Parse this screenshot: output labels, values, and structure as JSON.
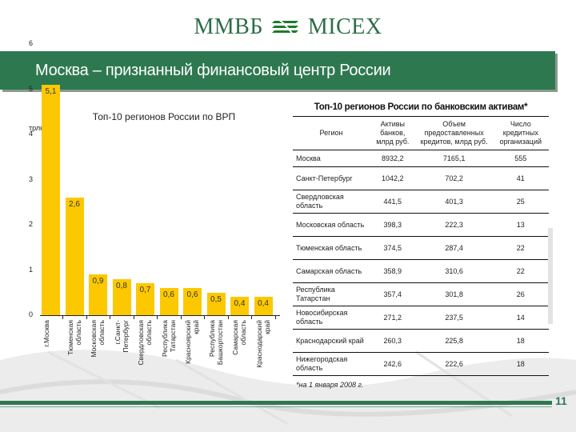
{
  "header": {
    "logo_left": "ММВБ",
    "logo_right": "MICEX",
    "logo_icon": "micex-stripes-icon",
    "title": "Москва – признанный финансовый центр России"
  },
  "colors": {
    "brand_green": "#2e7850",
    "bar_yellow": "#fcc800"
  },
  "chart_data": {
    "type": "bar",
    "title": "Топ-10 регионов России по ВРП",
    "ylabel": "трлн руб.",
    "xlabel": "",
    "ylim": [
      0,
      6
    ],
    "yticks": [
      "0",
      "1",
      "2",
      "3",
      "4",
      "5",
      "6"
    ],
    "grid": false,
    "categories": [
      "г.Москва",
      "Тюменская область",
      "Московская область",
      "г.Санкт-Петербург",
      "Свердловская область",
      "Республика Татарстан",
      "Красноярский край",
      "Республика Башкортостан",
      "Самарская область",
      "Краснодарский край"
    ],
    "values": [
      5.1,
      2.6,
      0.9,
      0.8,
      0.7,
      0.6,
      0.6,
      0.5,
      0.4,
      0.4
    ],
    "value_labels": [
      "5,1",
      "2,6",
      "0,9",
      "0,8",
      "0,7",
      "0,6",
      "0,6",
      "0,5",
      "0,4",
      "0,4"
    ]
  },
  "table": {
    "title": "Топ-10 регионов России по банковским активам*",
    "columns": [
      "Регион",
      "Активы банков, млрд руб.",
      "Объем предоставленных кредитов, млрд руб.",
      "Число кредитных организаций"
    ],
    "rows": [
      [
        "Москва",
        "8932,2",
        "7165,1",
        "555"
      ],
      [
        "Санкт-Петербург",
        "1042,2",
        "702,2",
        "41"
      ],
      [
        "Свердловская область",
        "441,5",
        "401,3",
        "25"
      ],
      [
        "Московская область",
        "398,3",
        "222,3",
        "13"
      ],
      [
        "Тюменская область",
        "374,5",
        "287,4",
        "22"
      ],
      [
        "Самарская область",
        "358,9",
        "310,6",
        "22"
      ],
      [
        "Республика Татарстан",
        "357,4",
        "301,8",
        "26"
      ],
      [
        "Новосибирская область",
        "271,2",
        "237,5",
        "14"
      ],
      [
        "Краснодарский край",
        "260,3",
        "225,8",
        "18"
      ],
      [
        "Нижегородская область",
        "242,6",
        "222,6",
        "18"
      ]
    ],
    "footnote": "*на 1 января 2008 г."
  },
  "footer": {
    "page_number": "11"
  }
}
